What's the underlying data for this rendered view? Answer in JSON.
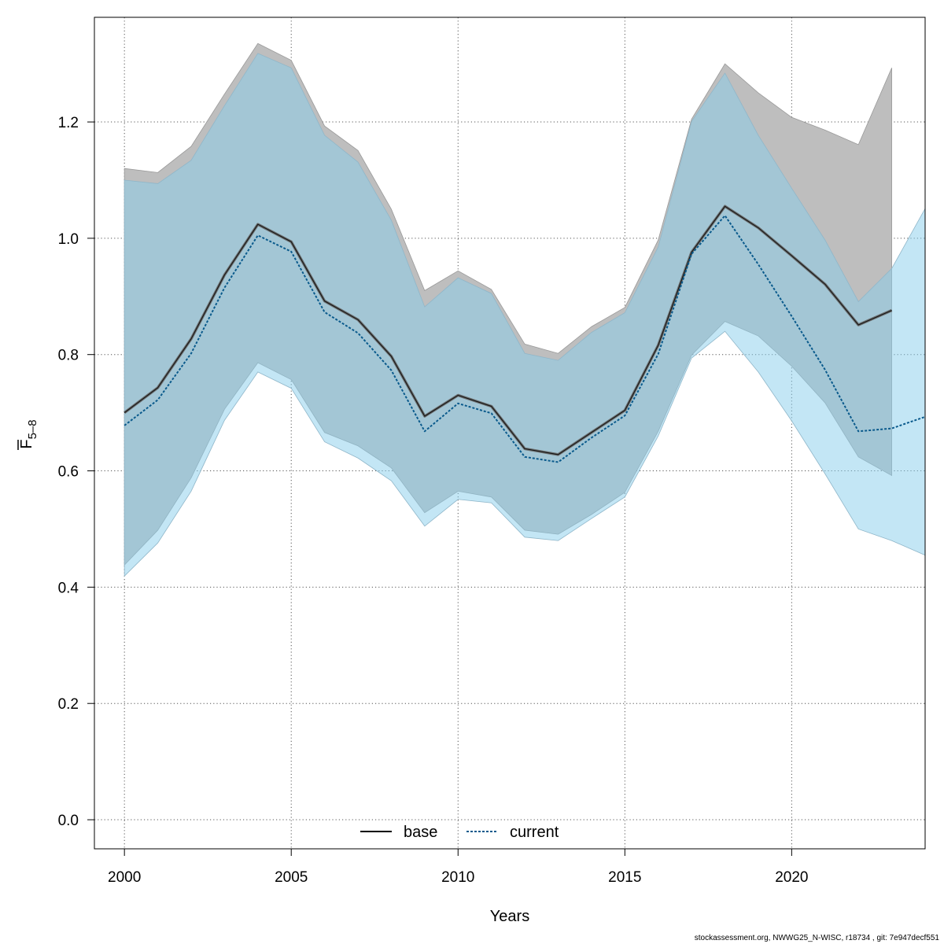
{
  "chart_data": {
    "type": "line",
    "title": "",
    "xlabel": "Years",
    "ylabel_main": "F",
    "ylabel_sub": "5–8",
    "xlim": [
      1999.1,
      2024
    ],
    "ylim": [
      -0.05,
      1.38
    ],
    "xticks": [
      2000,
      2005,
      2010,
      2015,
      2020
    ],
    "yticks": [
      0.0,
      0.2,
      0.4,
      0.6,
      0.8,
      1.0,
      1.2
    ],
    "ytick_labels": [
      "0.0",
      "0.2",
      "0.4",
      "0.6",
      "0.8",
      "1.0",
      "1.2"
    ],
    "grid": true,
    "legend_position": "bottom",
    "series": [
      {
        "name": "base",
        "color": "#333333",
        "band_color": "#bebebe",
        "line_style": "solid",
        "years": [
          2000,
          2001,
          2002,
          2003,
          2004,
          2005,
          2006,
          2007,
          2008,
          2009,
          2010,
          2011,
          2012,
          2013,
          2014,
          2015,
          2016,
          2017,
          2018,
          2019,
          2020,
          2021,
          2022,
          2023
        ],
        "values": [
          0.7,
          0.743,
          0.827,
          0.937,
          1.024,
          0.994,
          0.892,
          0.86,
          0.797,
          0.694,
          0.73,
          0.711,
          0.638,
          0.628,
          0.666,
          0.704,
          0.816,
          0.976,
          1.055,
          1.018,
          0.97,
          0.921,
          0.851,
          0.876
        ],
        "lower": [
          0.438,
          0.498,
          0.588,
          0.706,
          0.786,
          0.757,
          0.666,
          0.643,
          0.605,
          0.528,
          0.565,
          0.555,
          0.498,
          0.491,
          0.525,
          0.563,
          0.668,
          0.799,
          0.857,
          0.832,
          0.78,
          0.717,
          0.624,
          0.592
        ],
        "upper": [
          1.12,
          1.113,
          1.158,
          1.248,
          1.335,
          1.306,
          1.193,
          1.151,
          1.05,
          0.91,
          0.944,
          0.912,
          0.818,
          0.802,
          0.848,
          0.881,
          0.997,
          1.205,
          1.3,
          1.25,
          1.208,
          1.186,
          1.161,
          1.293
        ]
      },
      {
        "name": "current",
        "color": "#0a5a8c",
        "band_color": "#87ceeb",
        "line_style": "dotted",
        "years": [
          2000,
          2001,
          2002,
          2003,
          2004,
          2005,
          2006,
          2007,
          2008,
          2009,
          2010,
          2011,
          2012,
          2013,
          2014,
          2015,
          2016,
          2017,
          2018,
          2019,
          2020,
          2021,
          2022,
          2023,
          2024
        ],
        "values": [
          0.678,
          0.722,
          0.802,
          0.915,
          1.005,
          0.977,
          0.873,
          0.837,
          0.773,
          0.668,
          0.716,
          0.699,
          0.624,
          0.615,
          0.657,
          0.695,
          0.801,
          0.973,
          1.039,
          0.955,
          0.866,
          0.774,
          0.668,
          0.673,
          0.693
        ],
        "lower": [
          0.419,
          0.476,
          0.565,
          0.687,
          0.77,
          0.742,
          0.65,
          0.622,
          0.583,
          0.505,
          0.551,
          0.545,
          0.486,
          0.48,
          0.518,
          0.555,
          0.66,
          0.794,
          0.84,
          0.77,
          0.686,
          0.595,
          0.5,
          0.48,
          0.455
        ],
        "upper": [
          1.1,
          1.094,
          1.134,
          1.228,
          1.318,
          1.293,
          1.177,
          1.131,
          1.031,
          0.882,
          0.932,
          0.905,
          0.802,
          0.79,
          0.838,
          0.872,
          0.985,
          1.201,
          1.284,
          1.177,
          1.086,
          0.997,
          0.891,
          0.948,
          1.051
        ]
      }
    ]
  },
  "footer": "stockassessment.org, NWWG25_N-WISC, r18734 , git: 7e947decf551"
}
